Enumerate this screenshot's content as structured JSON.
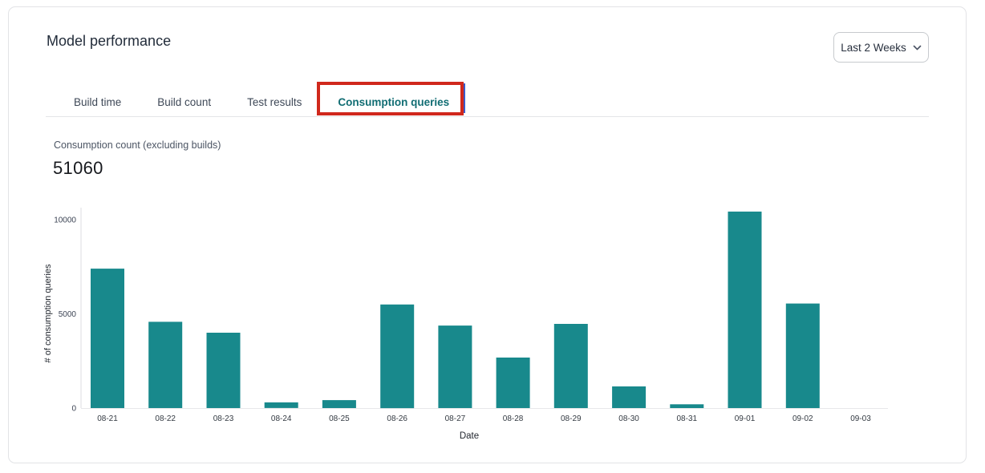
{
  "header": {
    "title": "Model performance",
    "range_selector": {
      "label": "Last 2 Weeks"
    }
  },
  "tabs": {
    "items": [
      {
        "label": "Build time",
        "active": false
      },
      {
        "label": "Build count",
        "active": false
      },
      {
        "label": "Test results",
        "active": false
      },
      {
        "label": "Consumption queries",
        "active": true
      }
    ],
    "active_color": "#116d73"
  },
  "metric": {
    "label": "Consumption count (excluding builds)",
    "value": "51060"
  },
  "annotation": {
    "type": "highlight-box",
    "target": "Consumption queries tab",
    "color": "#d0281c"
  },
  "chart_data": {
    "type": "bar",
    "title": "Consumption count (excluding builds)",
    "categories": [
      "08-21",
      "08-22",
      "08-23",
      "08-24",
      "08-25",
      "08-26",
      "08-27",
      "08-28",
      "08-29",
      "08-30",
      "08-31",
      "09-01",
      "09-02",
      "09-03"
    ],
    "values": [
      7400,
      4580,
      4000,
      300,
      420,
      5500,
      4380,
      2680,
      4470,
      1150,
      200,
      10430,
      5550,
      0
    ],
    "xlabel": "Date",
    "ylabel": "# of consumption queries",
    "yticks": [
      0,
      5000,
      10000
    ],
    "ylim": [
      0,
      10500
    ],
    "bar_color": "#18898C",
    "axis_color": "#dcdee2",
    "tick_text_color": "#3c4454",
    "axis_title_color": "#21262e",
    "grid": false,
    "legend_position": "none"
  }
}
